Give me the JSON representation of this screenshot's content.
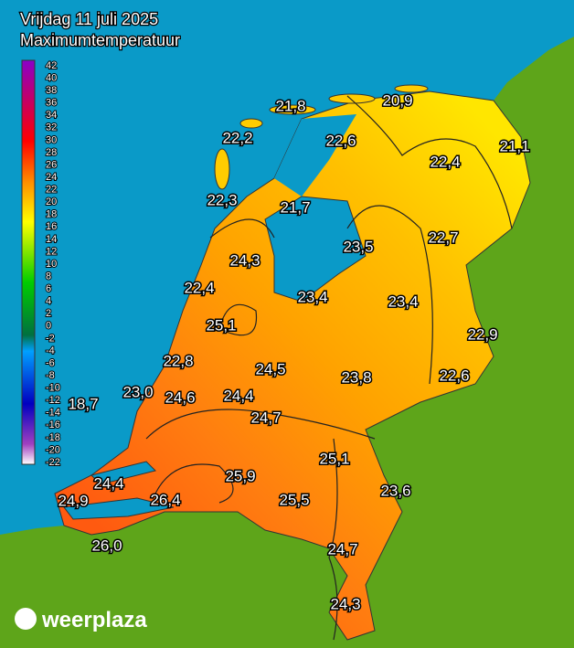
{
  "header": {
    "title": "Vrijdag 11 juli 2025",
    "subtitle": "Maximumtemperatuur"
  },
  "legend": {
    "ticks": [
      42,
      40,
      38,
      36,
      34,
      32,
      30,
      28,
      26,
      24,
      22,
      20,
      18,
      16,
      14,
      12,
      10,
      8,
      6,
      4,
      2,
      0,
      -2,
      -4,
      -6,
      -8,
      -10,
      -12,
      -14,
      -16,
      -18,
      -20,
      -22
    ]
  },
  "labels": [
    "21,8",
    "20,9",
    "22,2",
    "22,6",
    "21,1",
    "22,4",
    "22,3",
    "21,7",
    "23,5",
    "22,7",
    "24,3",
    "22,4",
    "23,4",
    "23,4",
    "25,1",
    "22,9",
    "22,8",
    "24,5",
    "23,8",
    "22,6",
    "23,0",
    "24,6",
    "24,4",
    "18,7",
    "24,7",
    "25,1",
    "24,4",
    "25,9",
    "26,4",
    "24,9",
    "25,5",
    "23,6",
    "26,0",
    "24,7",
    "24,3"
  ],
  "brand": "weerplaza"
}
